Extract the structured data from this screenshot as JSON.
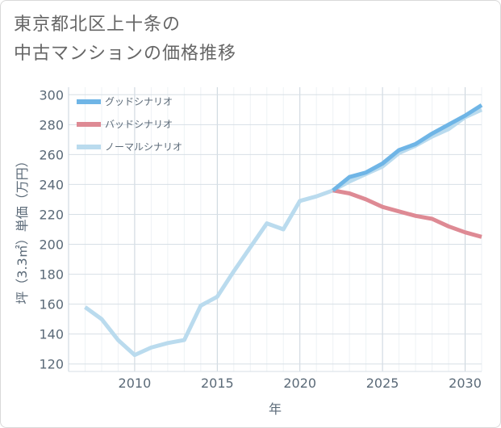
{
  "title_line1": "東京都北区上十条の",
  "title_line2": "中古マンションの価格推移",
  "chart_data": {
    "type": "line",
    "xlabel": "年",
    "ylabel": "坪（3.3㎡）単価（万円）",
    "xlim": [
      2006,
      2031
    ],
    "ylim": [
      115,
      305
    ],
    "x_ticks": [
      2010,
      2015,
      2020,
      2025,
      2030
    ],
    "y_ticks": [
      120,
      140,
      160,
      180,
      200,
      220,
      240,
      260,
      280,
      300
    ],
    "grid": true,
    "legend_position": "top-left",
    "series": [
      {
        "name": "グッドシナリオ",
        "color": "#6fb5e6",
        "x": [
          2022,
          2023,
          2024,
          2025,
          2026,
          2027,
          2028,
          2029,
          2030,
          2031
        ],
        "y": [
          236,
          245,
          248,
          254,
          263,
          267,
          274,
          280,
          286,
          293
        ]
      },
      {
        "name": "バッドシナリオ",
        "color": "#de8a94",
        "x": [
          2022,
          2023,
          2024,
          2025,
          2026,
          2027,
          2028,
          2029,
          2030,
          2031
        ],
        "y": [
          236,
          234,
          230,
          225,
          222,
          219,
          217,
          212,
          208,
          205
        ]
      },
      {
        "name": "ノーマルシナリオ",
        "color": "#badbee",
        "x": [
          2007,
          2008,
          2009,
          2010,
          2011,
          2012,
          2013,
          2014,
          2015,
          2016,
          2017,
          2018,
          2019,
          2020,
          2021,
          2022,
          2023,
          2024,
          2025,
          2026,
          2027,
          2028,
          2029,
          2030,
          2031
        ],
        "y": [
          158,
          150,
          136,
          126,
          131,
          134,
          136,
          159,
          165,
          182,
          198,
          214,
          210,
          229,
          232,
          236,
          242,
          247,
          252,
          261,
          266,
          272,
          277,
          285,
          290
        ]
      }
    ]
  }
}
